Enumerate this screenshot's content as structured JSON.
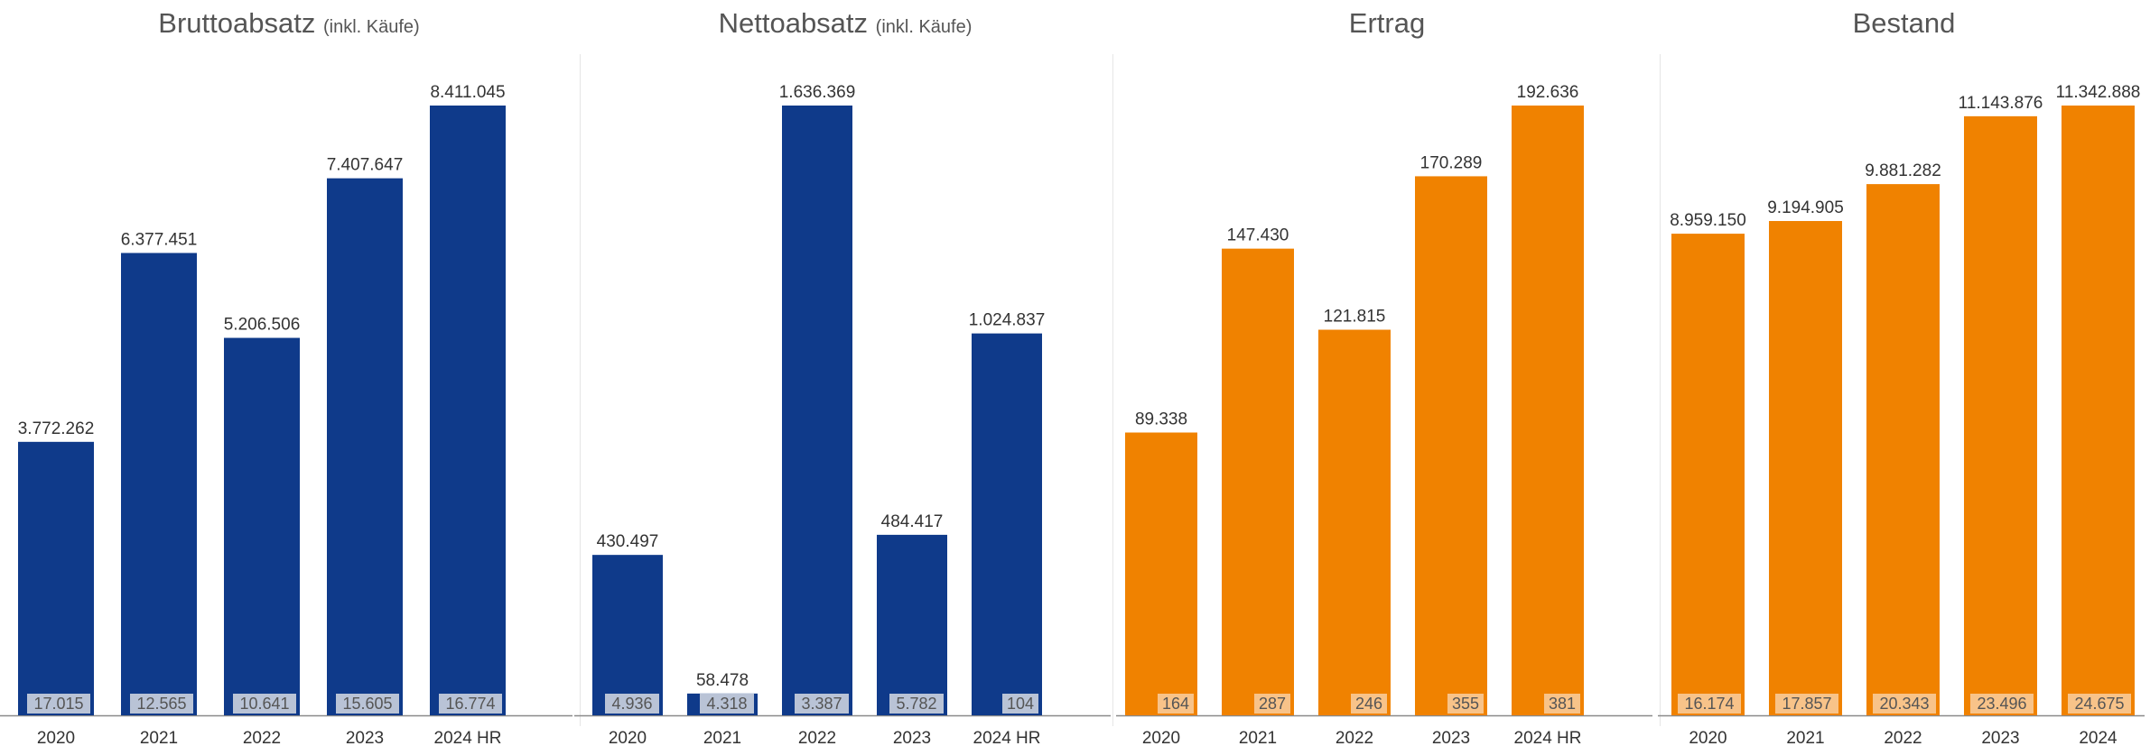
{
  "colors": {
    "blue": "#0f3a8a",
    "orange": "#f08200",
    "inner_label_bg": "#c8cfdc",
    "inner_label_bg_orange": "#f8c995",
    "title": "#555555",
    "axis": "#8a8a8a"
  },
  "chart_data": [
    {
      "type": "bar",
      "title": "Bruttoabsatz",
      "subtitle": "(inkl. Käufe)",
      "categories": [
        "2020",
        "2021",
        "2022",
        "2023",
        "2024 HR"
      ],
      "values": [
        3772262,
        6377451,
        5206506,
        7407647,
        8411045
      ],
      "value_labels": [
        "3.772.262",
        "6.377.451",
        "5.206.506",
        "7.407.647",
        "8.411.045"
      ],
      "inner_values": [
        17015,
        12565,
        10641,
        15605,
        16774
      ],
      "inner_labels": [
        "17.015",
        "12.565",
        "10.641",
        "15.605",
        "16.774"
      ],
      "ylim": [
        0,
        8411045
      ],
      "color": "blue",
      "grid": false
    },
    {
      "type": "bar",
      "title": "Nettoabsatz",
      "subtitle": "(inkl. Käufe)",
      "categories": [
        "2020",
        "2021",
        "2022",
        "2023",
        "2024 HR"
      ],
      "values": [
        430497,
        58478,
        1636369,
        484417,
        1024837
      ],
      "value_labels": [
        "430.497",
        "58.478",
        "1.636.369",
        "484.417",
        "1.024.837"
      ],
      "inner_values": [
        4936,
        4318,
        3387,
        5782,
        104
      ],
      "inner_labels": [
        "4.936",
        "4.318",
        "3.387",
        "5.782",
        "104"
      ],
      "ylim": [
        0,
        1636369
      ],
      "color": "blue",
      "grid": false
    },
    {
      "type": "bar",
      "title": "Ertrag",
      "subtitle": "",
      "categories": [
        "2020",
        "2021",
        "2022",
        "2023",
        "2024 HR"
      ],
      "values": [
        89338,
        147430,
        121815,
        170289,
        192636
      ],
      "value_labels": [
        "89.338",
        "147.430",
        "121.815",
        "170.289",
        "192.636"
      ],
      "inner_values": [
        164,
        287,
        246,
        355,
        381
      ],
      "inner_labels": [
        "164",
        "287",
        "246",
        "355",
        "381"
      ],
      "ylim": [
        0,
        192636
      ],
      "color": "orange",
      "grid": false
    },
    {
      "type": "bar",
      "title": "Bestand",
      "subtitle": "",
      "categories": [
        "2020",
        "2021",
        "2022",
        "2023",
        "2024"
      ],
      "values": [
        8959150,
        9194905,
        9881282,
        11143876,
        11342888
      ],
      "value_labels": [
        "8.959.150",
        "9.194.905",
        "9.881.282",
        "11.143.876",
        "11.342.888"
      ],
      "inner_values": [
        16174,
        17857,
        20343,
        23496,
        24675
      ],
      "inner_labels": [
        "16.174",
        "17.857",
        "20.343",
        "23.496",
        "24.675"
      ],
      "ylim": [
        0,
        11342888
      ],
      "color": "orange",
      "grid": false
    }
  ]
}
